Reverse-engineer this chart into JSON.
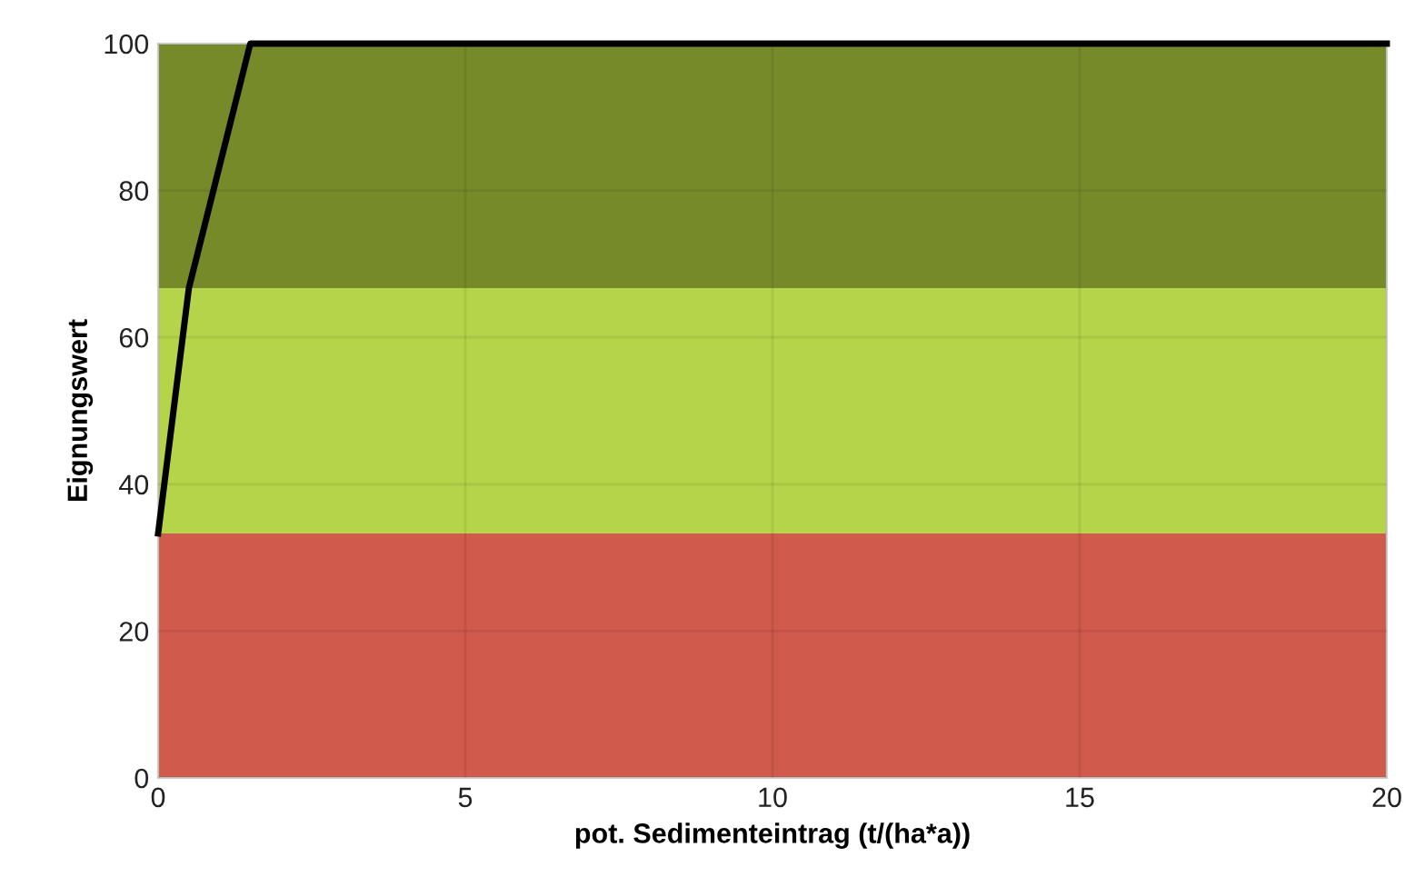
{
  "chart_data": {
    "type": "line",
    "xlabel": "pot. Sedimenteintrag (t/(ha*a))",
    "ylabel": "Eignungswert",
    "x": [
      0,
      0.5,
      1.5,
      20
    ],
    "series": [
      {
        "color": "#000000",
        "values": [
          33.3,
          66.7,
          100,
          100
        ]
      }
    ],
    "xlim": [
      0,
      20
    ],
    "ylim": [
      0,
      100
    ],
    "xticks": [
      0,
      5,
      10,
      15,
      20
    ],
    "yticks": [
      0,
      20,
      40,
      60,
      80,
      100
    ],
    "bands": [
      {
        "axis": "y",
        "from": 0,
        "to": 33.3,
        "color": "#d05a4c"
      },
      {
        "axis": "y",
        "from": 33.3,
        "to": 66.7,
        "color": "#b5d449"
      },
      {
        "axis": "y",
        "from": 66.7,
        "to": 100,
        "color": "#778a2a"
      }
    ],
    "grid": true,
    "marker": "none",
    "line_style": "solid"
  }
}
